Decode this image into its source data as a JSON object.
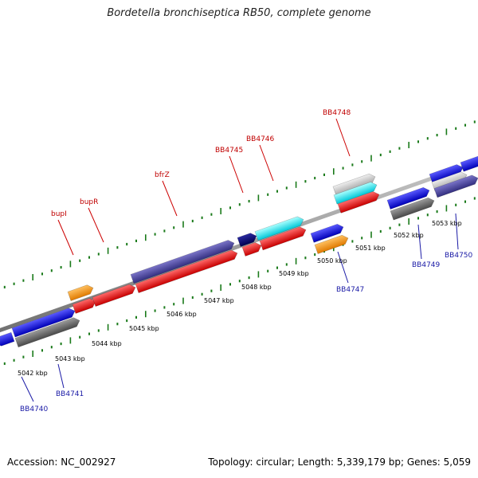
{
  "title": "Bordetella bronchiseptica RB50, complete genome",
  "footer": {
    "accession": "Accession: NC_002927",
    "stats": "Topology: circular; Length: 5,339,179 bp; Genes: 5,059"
  },
  "scale_labels": [
    "5042 kbp",
    "5043 kbp",
    "5044 kbp",
    "5045 kbp",
    "5046 kbp",
    "5047 kbp",
    "5048 kbp",
    "5049 kbp",
    "5050 kbp",
    "5051 kbp",
    "5052 kbp",
    "5053 kbp"
  ],
  "gene_labels_top": [
    "bupI",
    "bupR",
    "bfrZ",
    "BB4745",
    "BB4746",
    "BB4748"
  ],
  "gene_labels_bottom": [
    "BB4740",
    "BB4741",
    "BB4747",
    "BB4749",
    "BB4750"
  ],
  "colors": {
    "cds_red": "#ff0000",
    "cds_blue": "#0000ee",
    "cds_gray": "#666666",
    "cds_orange": "#ff9900",
    "cds_cyan": "#00eeee",
    "cds_navy": "#000080",
    "cds_slate": "#4a44a0",
    "cds_lightgray": "#cccccc",
    "tick_green": "#006600",
    "backbone": "#888888",
    "top_label": "#c00000",
    "bottom_label": "#1a1aa6"
  }
}
